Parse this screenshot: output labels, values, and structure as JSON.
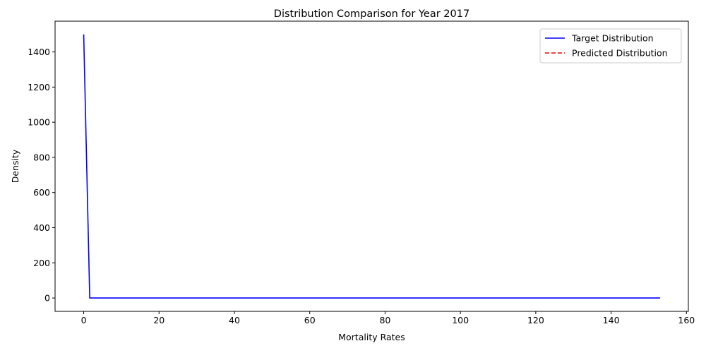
{
  "chart_data": {
    "type": "line",
    "title": "Distribution Comparison for Year 2017",
    "xlabel": "Mortality Rates",
    "ylabel": "Density",
    "xlim": [
      -7.6,
      160.5
    ],
    "ylim": [
      -76,
      1575
    ],
    "xticks": [
      0,
      20,
      40,
      60,
      80,
      100,
      120,
      140,
      160
    ],
    "yticks": [
      0,
      200,
      400,
      600,
      800,
      1000,
      1200,
      1400
    ],
    "grid": false,
    "legend": "top-right",
    "series": [
      {
        "name": "Target Distribution",
        "color": "#0000ff",
        "linestyle": "solid",
        "x": [
          0,
          1.6,
          153
        ],
        "y": [
          1500,
          0,
          0
        ]
      },
      {
        "name": "Predicted Distribution",
        "color": "#ff0000",
        "linestyle": "dashed",
        "x": [],
        "y": []
      }
    ]
  }
}
